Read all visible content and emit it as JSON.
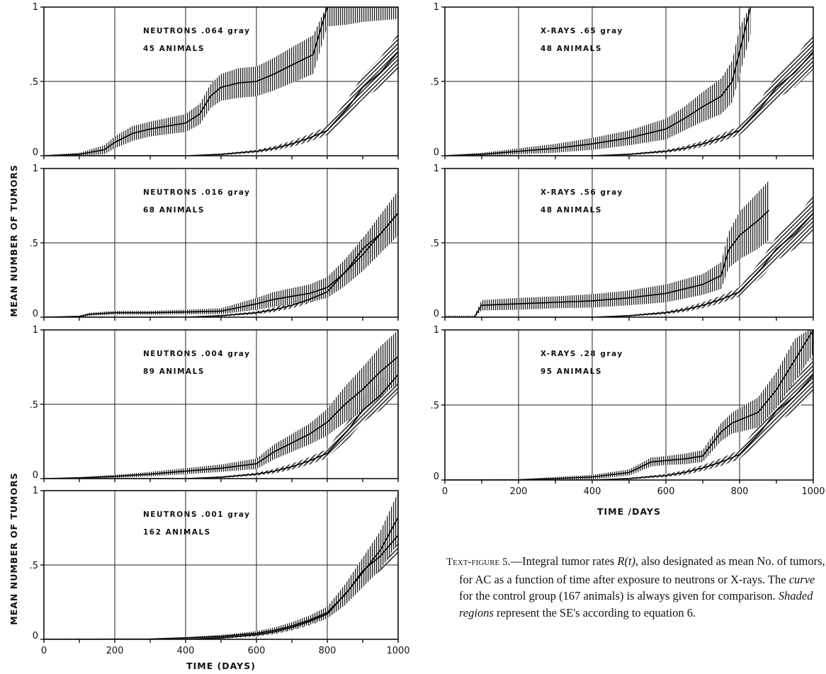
{
  "figure": {
    "caption": {
      "label": "Text-figure 5",
      "part1": ".—Integral tumor rates ",
      "math": "R(t)",
      "part2": ", also designated as mean No. of tumors, for AC as a function of time after exposure to neutrons or X-rays. The ",
      "curve_word": "curve",
      "part3": " for the control group (167 animals) is always given for comparison. ",
      "shaded_word": "Shaded regions",
      "part4": " represent the SE's according to equation 6."
    }
  },
  "chart_data": [
    {
      "type": "line",
      "id": "neutrons-064",
      "label_line1": "NEUTRONS .064 gray",
      "label_line2": "45 ANIMALS",
      "xlim": [
        0,
        1000
      ],
      "ylim": [
        0,
        1
      ],
      "x_ticks": [
        0,
        200,
        400,
        600,
        800,
        1000
      ],
      "y_ticks": [
        {
          "value": 0,
          "label": "0"
        },
        {
          "value": 0.5,
          "label": ".5"
        },
        {
          "value": 1,
          "label": "1"
        }
      ],
      "grid": true,
      "series": [
        {
          "role": "exposed",
          "x": [
            0,
            100,
            170,
            200,
            250,
            300,
            350,
            400,
            440,
            470,
            500,
            550,
            600,
            650,
            700,
            760,
            800,
            850,
            900,
            1000
          ],
          "y": [
            0,
            0.01,
            0.04,
            0.09,
            0.15,
            0.18,
            0.2,
            0.22,
            0.28,
            0.4,
            0.46,
            0.49,
            0.5,
            0.55,
            0.61,
            0.68,
            1,
            1,
            1,
            1
          ],
          "se": [
            0.004,
            0.01,
            0.03,
            0.04,
            0.05,
            0.05,
            0.055,
            0.06,
            0.07,
            0.08,
            0.09,
            0.1,
            0.1,
            0.11,
            0.12,
            0.13,
            0.13,
            0.12,
            0.1,
            0.08
          ]
        },
        {
          "role": "control",
          "x": [
            0,
            400,
            500,
            600,
            650,
            700,
            750,
            800,
            830,
            860,
            900,
            950,
            1000
          ],
          "y": [
            0,
            0,
            0.01,
            0.03,
            0.05,
            0.08,
            0.12,
            0.17,
            0.25,
            0.33,
            0.46,
            0.56,
            0.7
          ],
          "se": [
            0,
            0,
            0.005,
            0.01,
            0.015,
            0.02,
            0.025,
            0.03,
            0.045,
            0.06,
            0.08,
            0.1,
            0.12
          ]
        }
      ]
    },
    {
      "type": "line",
      "id": "xrays-65",
      "label_line1": "X-RAYS    .65 gray",
      "label_line2": "48 ANIMALS",
      "xlim": [
        0,
        1000
      ],
      "ylim": [
        0,
        1
      ],
      "x_ticks": [
        0,
        200,
        400,
        600,
        800,
        1000
      ],
      "y_ticks": [
        {
          "value": 0,
          "label": "0"
        },
        {
          "value": 0.5,
          "label": ".5"
        },
        {
          "value": 1,
          "label": "1"
        }
      ],
      "grid": true,
      "series": [
        {
          "role": "exposed",
          "x": [
            0,
            100,
            200,
            300,
            400,
            500,
            600,
            650,
            700,
            750,
            780,
            800,
            830
          ],
          "y": [
            0,
            0.01,
            0.03,
            0.05,
            0.08,
            0.12,
            0.18,
            0.25,
            0.33,
            0.4,
            0.5,
            0.7,
            1
          ],
          "se": [
            0.004,
            0.01,
            0.02,
            0.03,
            0.04,
            0.05,
            0.07,
            0.08,
            0.1,
            0.12,
            0.14,
            0.16,
            0.18
          ]
        },
        {
          "role": "control",
          "x": [
            0,
            400,
            500,
            600,
            650,
            700,
            750,
            800,
            830,
            860,
            900,
            950,
            1000
          ],
          "y": [
            0,
            0,
            0.01,
            0.03,
            0.05,
            0.08,
            0.12,
            0.17,
            0.25,
            0.33,
            0.46,
            0.56,
            0.7
          ],
          "se": [
            0,
            0,
            0.005,
            0.01,
            0.015,
            0.02,
            0.025,
            0.03,
            0.045,
            0.06,
            0.08,
            0.1,
            0.12
          ]
        }
      ]
    },
    {
      "type": "line",
      "id": "neutrons-016",
      "label_line1": "NEUTRONS .016 gray",
      "label_line2": "68 ANIMALS",
      "xlim": [
        0,
        1000
      ],
      "ylim": [
        0,
        1
      ],
      "x_ticks": [
        0,
        200,
        400,
        600,
        800,
        1000
      ],
      "y_ticks": [
        {
          "value": 0,
          "label": "0"
        },
        {
          "value": 0.5,
          "label": ".5"
        },
        {
          "value": 1,
          "label": "1"
        }
      ],
      "grid": true,
      "series": [
        {
          "role": "exposed",
          "x": [
            0,
            100,
            130,
            200,
            300,
            400,
            500,
            600,
            650,
            700,
            750,
            800,
            850,
            900,
            950,
            1000
          ],
          "y": [
            0,
            0.005,
            0.02,
            0.03,
            0.03,
            0.035,
            0.04,
            0.09,
            0.12,
            0.14,
            0.16,
            0.2,
            0.3,
            0.42,
            0.56,
            0.7
          ],
          "se": [
            0.003,
            0.005,
            0.01,
            0.012,
            0.012,
            0.015,
            0.02,
            0.04,
            0.05,
            0.055,
            0.06,
            0.07,
            0.09,
            0.11,
            0.13,
            0.15
          ]
        },
        {
          "role": "control",
          "x": [
            0,
            400,
            500,
            600,
            650,
            700,
            750,
            800,
            830,
            860,
            900,
            950,
            1000
          ],
          "y": [
            0,
            0,
            0.01,
            0.03,
            0.05,
            0.08,
            0.12,
            0.17,
            0.25,
            0.33,
            0.46,
            0.56,
            0.7
          ],
          "se": [
            0,
            0,
            0.005,
            0.01,
            0.015,
            0.02,
            0.025,
            0.03,
            0.045,
            0.06,
            0.08,
            0.1,
            0.12
          ]
        }
      ]
    },
    {
      "type": "line",
      "id": "xrays-56",
      "label_line1": "X-RAYS    .56 gray",
      "label_line2": "48 ANIMALS",
      "xlim": [
        0,
        1000
      ],
      "ylim": [
        0,
        1
      ],
      "x_ticks": [
        0,
        200,
        400,
        600,
        800,
        1000
      ],
      "y_ticks": [
        {
          "value": 0,
          "label": "0"
        },
        {
          "value": 0.5,
          "label": ".5"
        },
        {
          "value": 1,
          "label": "1"
        }
      ],
      "grid": true,
      "series": [
        {
          "role": "exposed",
          "x": [
            0,
            80,
            100,
            200,
            300,
            400,
            500,
            600,
            700,
            750,
            770,
            800,
            850,
            880
          ],
          "y": [
            0,
            0,
            0.08,
            0.09,
            0.1,
            0.11,
            0.13,
            0.16,
            0.22,
            0.28,
            0.45,
            0.55,
            0.65,
            0.72
          ],
          "se": [
            0.01,
            0.01,
            0.035,
            0.04,
            0.04,
            0.045,
            0.05,
            0.06,
            0.07,
            0.09,
            0.12,
            0.16,
            0.19,
            0.2
          ]
        },
        {
          "role": "control",
          "x": [
            0,
            400,
            500,
            600,
            650,
            700,
            750,
            800,
            830,
            860,
            900,
            950,
            1000
          ],
          "y": [
            0,
            0,
            0.01,
            0.03,
            0.05,
            0.08,
            0.12,
            0.17,
            0.25,
            0.33,
            0.46,
            0.56,
            0.7
          ],
          "se": [
            0,
            0,
            0.005,
            0.01,
            0.015,
            0.02,
            0.025,
            0.03,
            0.045,
            0.06,
            0.08,
            0.1,
            0.12
          ]
        }
      ]
    },
    {
      "type": "line",
      "id": "neutrons-004",
      "label_line1": "NEUTRONS .004 gray",
      "label_line2": "89 ANIMALS",
      "xlim": [
        0,
        1000
      ],
      "ylim": [
        0,
        1
      ],
      "x_ticks": [
        0,
        200,
        400,
        600,
        800,
        1000
      ],
      "y_ticks": [
        {
          "value": 0,
          "label": "0"
        },
        {
          "value": 0.5,
          "label": ".5"
        },
        {
          "value": 1,
          "label": "1"
        }
      ],
      "grid": true,
      "series": [
        {
          "role": "exposed",
          "x": [
            0,
            100,
            200,
            300,
            400,
            500,
            600,
            650,
            700,
            750,
            800,
            850,
            900,
            950,
            1000
          ],
          "y": [
            0,
            0.005,
            0.015,
            0.03,
            0.05,
            0.07,
            0.1,
            0.18,
            0.24,
            0.3,
            0.38,
            0.5,
            0.6,
            0.72,
            0.82
          ],
          "se": [
            0.003,
            0.005,
            0.01,
            0.015,
            0.02,
            0.025,
            0.035,
            0.05,
            0.06,
            0.07,
            0.09,
            0.12,
            0.15,
            0.17,
            0.18
          ]
        },
        {
          "role": "control",
          "x": [
            0,
            400,
            500,
            600,
            650,
            700,
            750,
            800,
            830,
            860,
            900,
            950,
            1000
          ],
          "y": [
            0,
            0,
            0.01,
            0.03,
            0.05,
            0.08,
            0.12,
            0.17,
            0.25,
            0.33,
            0.46,
            0.56,
            0.7
          ],
          "se": [
            0,
            0,
            0.005,
            0.01,
            0.015,
            0.02,
            0.025,
            0.03,
            0.045,
            0.06,
            0.08,
            0.1,
            0.12
          ]
        }
      ]
    },
    {
      "type": "line",
      "id": "xrays-28",
      "label_line1": "X-RAYS    .28 gray",
      "label_line2": "95 ANIMALS",
      "xlim": [
        0,
        1000
      ],
      "ylim": [
        0,
        1
      ],
      "x_ticks": [
        0,
        200,
        400,
        600,
        800,
        1000
      ],
      "y_ticks": [
        {
          "value": 0,
          "label": "0"
        },
        {
          "value": 0.5,
          "label": ".5"
        },
        {
          "value": 1,
          "label": "1"
        }
      ],
      "grid": true,
      "series": [
        {
          "role": "exposed",
          "x": [
            0,
            200,
            300,
            400,
            500,
            560,
            600,
            650,
            700,
            750,
            780,
            800,
            850,
            900,
            950,
            1000
          ],
          "y": [
            0,
            0.002,
            0.01,
            0.02,
            0.05,
            0.12,
            0.13,
            0.14,
            0.16,
            0.32,
            0.38,
            0.4,
            0.45,
            0.6,
            0.8,
            1
          ],
          "se": [
            0.002,
            0.003,
            0.01,
            0.015,
            0.02,
            0.03,
            0.03,
            0.035,
            0.04,
            0.06,
            0.07,
            0.08,
            0.1,
            0.12,
            0.14,
            0.16
          ]
        },
        {
          "role": "control",
          "x": [
            0,
            400,
            500,
            600,
            650,
            700,
            750,
            800,
            830,
            860,
            900,
            950,
            1000
          ],
          "y": [
            0,
            0,
            0.01,
            0.03,
            0.05,
            0.08,
            0.12,
            0.17,
            0.25,
            0.33,
            0.46,
            0.56,
            0.7
          ],
          "se": [
            0,
            0,
            0.005,
            0.01,
            0.015,
            0.02,
            0.025,
            0.03,
            0.045,
            0.06,
            0.08,
            0.1,
            0.12
          ]
        }
      ]
    },
    {
      "type": "line",
      "id": "neutrons-001",
      "label_line1": "NEUTRONS .001 gray",
      "label_line2": "162 ANIMALS",
      "xlim": [
        0,
        1000
      ],
      "ylim": [
        0,
        1
      ],
      "x_ticks": [
        0,
        200,
        400,
        600,
        800,
        1000
      ],
      "y_ticks": [
        {
          "value": 0,
          "label": "0"
        },
        {
          "value": 0.5,
          "label": ".5"
        },
        {
          "value": 1,
          "label": "1"
        }
      ],
      "grid": true,
      "series": [
        {
          "role": "exposed",
          "x": [
            0,
            300,
            400,
            500,
            600,
            650,
            700,
            750,
            800,
            850,
            900,
            950,
            1000
          ],
          "y": [
            0,
            0.002,
            0.01,
            0.02,
            0.04,
            0.06,
            0.09,
            0.13,
            0.18,
            0.3,
            0.45,
            0.6,
            0.82
          ],
          "se": [
            0,
            0.002,
            0.005,
            0.01,
            0.015,
            0.02,
            0.025,
            0.03,
            0.04,
            0.07,
            0.1,
            0.13,
            0.17
          ]
        },
        {
          "role": "control",
          "x": [
            0,
            400,
            500,
            600,
            650,
            700,
            750,
            800,
            830,
            860,
            900,
            950,
            1000
          ],
          "y": [
            0,
            0,
            0.01,
            0.03,
            0.05,
            0.08,
            0.12,
            0.17,
            0.25,
            0.33,
            0.46,
            0.56,
            0.7
          ],
          "se": [
            0,
            0,
            0.005,
            0.01,
            0.015,
            0.02,
            0.025,
            0.03,
            0.045,
            0.06,
            0.08,
            0.1,
            0.12
          ]
        }
      ]
    }
  ],
  "axes": {
    "ylabel_left": "MEAN NUMBER OF TUMORS",
    "xlabel_left": "TIME (DAYS)",
    "xlabel_right": "TIME /DAYS"
  }
}
